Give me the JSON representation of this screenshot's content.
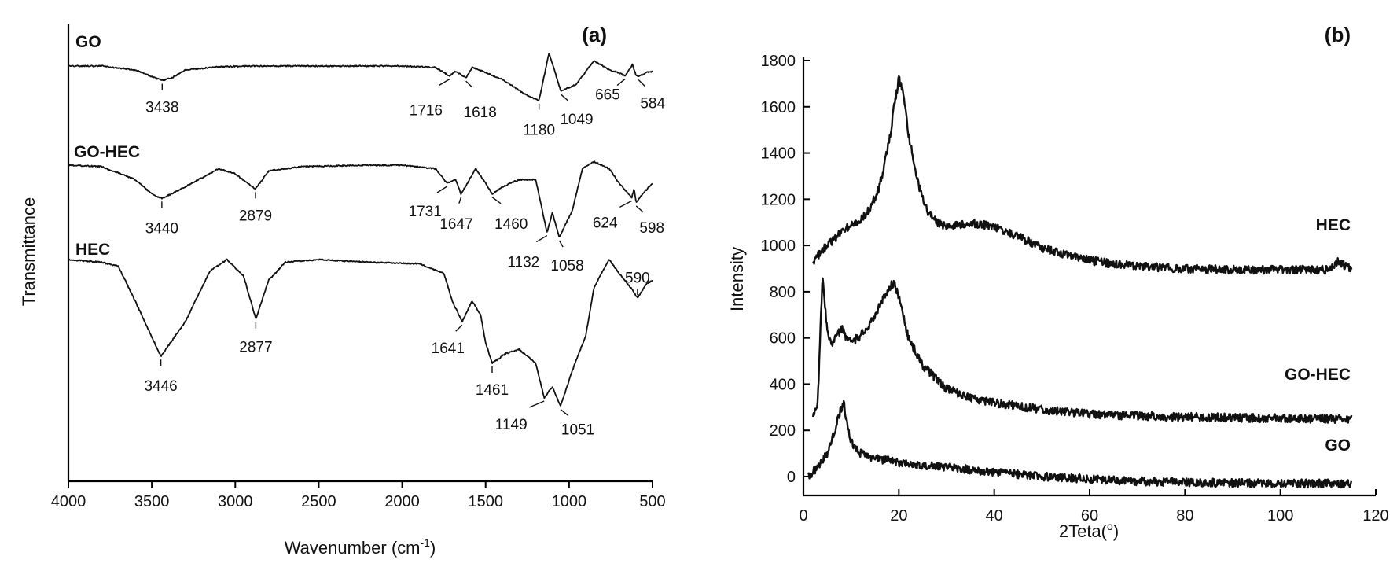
{
  "chart_data": [
    {
      "type": "line",
      "panel_label": "(a)",
      "xlabel": "Wavenumber (cm",
      "xlabel_sup": "-1",
      "xlabel_end": ")",
      "ylabel": "Transmittance",
      "xlim": [
        4000,
        500
      ],
      "x_reversed": true,
      "y_ticks_shown": false,
      "x_ticks": [
        "4000",
        "3500",
        "3000",
        "2500",
        "2000",
        "1500",
        "1000",
        "500"
      ],
      "series": [
        {
          "name": "GO",
          "x": [
            4000,
            3800,
            3600,
            3500,
            3438,
            3380,
            3300,
            3100,
            2900,
            2500,
            2200,
            2000,
            1800,
            1716,
            1680,
            1618,
            1580,
            1400,
            1250,
            1180,
            1120,
            1049,
            960,
            850,
            760,
            700,
            665,
            620,
            600,
            584,
            540,
            500
          ],
          "y": [
            0.0,
            0.0,
            0.06,
            0.16,
            0.22,
            0.18,
            0.06,
            0.01,
            0.0,
            0.0,
            0.0,
            0.0,
            0.02,
            0.15,
            0.08,
            0.18,
            0.02,
            0.2,
            0.45,
            0.52,
            -0.2,
            0.38,
            0.28,
            -0.08,
            0.06,
            0.1,
            0.15,
            -0.02,
            0.13,
            0.16,
            0.1,
            0.08
          ],
          "peaks": [
            {
              "label": "3438",
              "x": 3438
            },
            {
              "label": "1716",
              "x": 1716
            },
            {
              "label": "1618",
              "x": 1618
            },
            {
              "label": "1180",
              "x": 1180
            },
            {
              "label": "1049",
              "x": 1049
            },
            {
              "label": "665",
              "x": 665
            },
            {
              "label": "584",
              "x": 584
            }
          ]
        },
        {
          "name": "GO-HEC",
          "x": [
            4000,
            3800,
            3600,
            3500,
            3440,
            3300,
            3100,
            3000,
            2879,
            2800,
            2600,
            2200,
            2000,
            1800,
            1731,
            1680,
            1647,
            1560,
            1500,
            1460,
            1400,
            1300,
            1200,
            1132,
            1100,
            1058,
            980,
            920,
            850,
            760,
            700,
            624,
            610,
            598,
            560,
            500
          ],
          "y": [
            0.0,
            0.02,
            0.2,
            0.4,
            0.46,
            0.3,
            0.05,
            0.12,
            0.33,
            0.08,
            0.02,
            0.0,
            0.0,
            0.05,
            0.25,
            0.2,
            0.4,
            0.05,
            0.25,
            0.4,
            0.3,
            0.2,
            0.2,
            0.93,
            0.66,
            1.0,
            0.62,
            0.05,
            -0.05,
            0.05,
            0.25,
            0.45,
            0.32,
            0.52,
            0.4,
            0.25
          ],
          "peaks": [
            {
              "label": "3440",
              "x": 3440
            },
            {
              "label": "2879",
              "x": 2879
            },
            {
              "label": "1731",
              "x": 1731
            },
            {
              "label": "1647",
              "x": 1647
            },
            {
              "label": "1460",
              "x": 1460
            },
            {
              "label": "1132",
              "x": 1132
            },
            {
              "label": "1058",
              "x": 1058
            },
            {
              "label": "624",
              "x": 624
            },
            {
              "label": "598",
              "x": 598
            }
          ]
        },
        {
          "name": "HEC",
          "x": [
            4000,
            3800,
            3700,
            3600,
            3446,
            3300,
            3150,
            3050,
            2950,
            2877,
            2800,
            2700,
            2500,
            2200,
            1900,
            1750,
            1700,
            1641,
            1580,
            1530,
            1500,
            1461,
            1380,
            1300,
            1200,
            1149,
            1100,
            1051,
            980,
            900,
            850,
            760,
            700,
            620,
            590,
            540,
            500
          ],
          "y": [
            0.0,
            0.02,
            0.05,
            0.3,
            0.7,
            0.45,
            0.08,
            0.0,
            0.12,
            0.43,
            0.15,
            0.02,
            0.0,
            0.02,
            0.03,
            0.1,
            0.3,
            0.45,
            0.3,
            0.4,
            0.6,
            0.75,
            0.68,
            0.65,
            0.75,
            1.0,
            0.92,
            1.06,
            0.8,
            0.55,
            0.2,
            0.0,
            0.1,
            0.22,
            0.28,
            0.18,
            0.15
          ],
          "peaks": [
            {
              "label": "3446",
              "x": 3446
            },
            {
              "label": "2877",
              "x": 2877
            },
            {
              "label": "1641",
              "x": 1641
            },
            {
              "label": "1461",
              "x": 1461
            },
            {
              "label": "1149",
              "x": 1149
            },
            {
              "label": "1051",
              "x": 1051
            },
            {
              "label": "590",
              "x": 590
            }
          ]
        }
      ]
    },
    {
      "type": "line",
      "panel_label": "(b)",
      "xlabel": "2Teta(",
      "xlabel_sup": "o",
      "xlabel_end": ")",
      "ylabel": "Intensity",
      "xlim": [
        0,
        120
      ],
      "ylim": [
        -100,
        1800
      ],
      "x_ticks": [
        "0",
        "20",
        "40",
        "60",
        "80",
        "100",
        "120"
      ],
      "y_ticks": [
        "0",
        "200",
        "400",
        "600",
        "800",
        "1000",
        "1200",
        "1400",
        "1600",
        "1800"
      ],
      "series": [
        {
          "name": "HEC",
          "x": [
            2,
            4,
            6,
            8,
            10,
            12,
            14,
            16,
            18,
            19,
            20,
            21,
            22,
            24,
            26,
            28,
            30,
            35,
            40,
            45,
            50,
            55,
            60,
            65,
            70,
            75,
            80,
            90,
            100,
            110,
            112,
            115
          ],
          "y": [
            930,
            980,
            1020,
            1060,
            1090,
            1110,
            1160,
            1260,
            1450,
            1600,
            1720,
            1650,
            1480,
            1270,
            1150,
            1100,
            1080,
            1100,
            1080,
            1040,
            990,
            960,
            935,
            920,
            910,
            905,
            900,
            895,
            895,
            895,
            930,
            895
          ]
        },
        {
          "name": "GO-HEC",
          "x": [
            2,
            3,
            3.5,
            4,
            5,
            6,
            7,
            8,
            9,
            10,
            12,
            14,
            16,
            18,
            19,
            20,
            22,
            25,
            30,
            35,
            40,
            50,
            60,
            70,
            80,
            90,
            100,
            110,
            115
          ],
          "y": [
            260,
            320,
            600,
            880,
            620,
            580,
            610,
            640,
            600,
            580,
            610,
            660,
            740,
            820,
            840,
            780,
            600,
            480,
            380,
            340,
            320,
            290,
            270,
            262,
            258,
            255,
            252,
            250,
            250
          ]
        },
        {
          "name": "GO",
          "x": [
            1,
            3,
            5,
            6,
            7,
            8,
            8.5,
            9,
            10,
            12,
            15,
            20,
            25,
            30,
            40,
            50,
            60,
            70,
            80,
            90,
            100,
            110,
            115
          ],
          "y": [
            0,
            40,
            100,
            160,
            230,
            300,
            310,
            250,
            150,
            100,
            80,
            60,
            50,
            40,
            20,
            0,
            -10,
            -20,
            -25,
            -28,
            -30,
            -30,
            -30
          ]
        }
      ]
    }
  ]
}
